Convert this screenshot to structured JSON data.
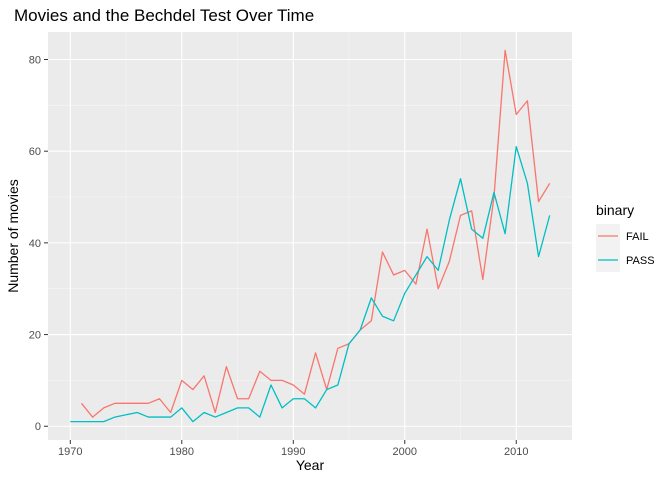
{
  "chart_data": {
    "type": "line",
    "title": "Movies and the Bechdel Test Over Time",
    "xlabel": "Year",
    "ylabel": "Number of movies",
    "xlim": [
      1968,
      2015
    ],
    "ylim": [
      -3,
      86
    ],
    "x_ticks": [
      1970,
      1980,
      1990,
      2000,
      2010
    ],
    "y_ticks": [
      0,
      20,
      40,
      60,
      80
    ],
    "grid": true,
    "legend": {
      "title": "binary",
      "position": "right"
    },
    "series": [
      {
        "name": "FAIL",
        "color": "#F8766D",
        "points": [
          [
            1971,
            5
          ],
          [
            1972,
            2
          ],
          [
            1973,
            4
          ],
          [
            1974,
            5
          ],
          [
            1975,
            5
          ],
          [
            1976,
            5
          ],
          [
            1977,
            5
          ],
          [
            1978,
            6
          ],
          [
            1979,
            3
          ],
          [
            1980,
            10
          ],
          [
            1981,
            8
          ],
          [
            1982,
            11
          ],
          [
            1983,
            3
          ],
          [
            1984,
            13
          ],
          [
            1985,
            6
          ],
          [
            1986,
            6
          ],
          [
            1987,
            12
          ],
          [
            1988,
            10
          ],
          [
            1989,
            10
          ],
          [
            1990,
            9
          ],
          [
            1991,
            7
          ],
          [
            1992,
            16
          ],
          [
            1993,
            8
          ],
          [
            1994,
            17
          ],
          [
            1995,
            18
          ],
          [
            1996,
            21
          ],
          [
            1997,
            23
          ],
          [
            1998,
            38
          ],
          [
            1999,
            33
          ],
          [
            2000,
            34
          ],
          [
            2001,
            31
          ],
          [
            2002,
            43
          ],
          [
            2003,
            30
          ],
          [
            2004,
            36
          ],
          [
            2005,
            46
          ],
          [
            2006,
            47
          ],
          [
            2007,
            32
          ],
          [
            2008,
            50
          ],
          [
            2009,
            82
          ],
          [
            2010,
            68
          ],
          [
            2011,
            71
          ],
          [
            2012,
            49
          ],
          [
            2013,
            53
          ]
        ]
      },
      {
        "name": "PASS",
        "color": "#00BFC4",
        "points": [
          [
            1970,
            1
          ],
          [
            1971,
            1
          ],
          [
            1972,
            1
          ],
          [
            1973,
            1
          ],
          [
            1974,
            2
          ],
          [
            1975,
            2.5
          ],
          [
            1976,
            3
          ],
          [
            1977,
            2
          ],
          [
            1978,
            2
          ],
          [
            1979,
            2
          ],
          [
            1980,
            4
          ],
          [
            1981,
            1
          ],
          [
            1982,
            3
          ],
          [
            1983,
            2
          ],
          [
            1984,
            3
          ],
          [
            1985,
            4
          ],
          [
            1986,
            4
          ],
          [
            1987,
            2
          ],
          [
            1988,
            9
          ],
          [
            1989,
            4
          ],
          [
            1990,
            6
          ],
          [
            1991,
            6
          ],
          [
            1992,
            4
          ],
          [
            1993,
            8
          ],
          [
            1994,
            9
          ],
          [
            1995,
            18
          ],
          [
            1996,
            21
          ],
          [
            1997,
            28
          ],
          [
            1998,
            24
          ],
          [
            1999,
            23
          ],
          [
            2000,
            29
          ],
          [
            2001,
            33
          ],
          [
            2002,
            37
          ],
          [
            2003,
            34
          ],
          [
            2004,
            45
          ],
          [
            2005,
            54
          ],
          [
            2006,
            43
          ],
          [
            2007,
            41
          ],
          [
            2008,
            51
          ],
          [
            2009,
            42
          ],
          [
            2010,
            61
          ],
          [
            2011,
            53
          ],
          [
            2012,
            37
          ],
          [
            2013,
            46
          ]
        ]
      }
    ]
  }
}
